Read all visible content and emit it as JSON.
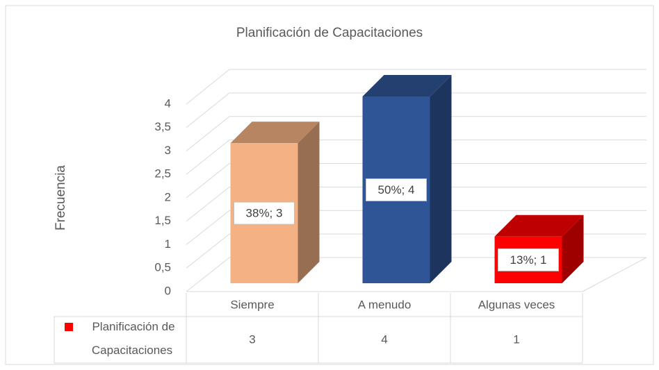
{
  "chart_data": {
    "type": "bar3d",
    "title": "Planificación de Capacitaciones",
    "y_label": "Frecuencia",
    "categories": [
      "Siempre",
      "A menudo",
      "Algunas veces"
    ],
    "series": [
      {
        "name": "Planificación de Capacitaciones",
        "color": "#ff0000",
        "colors": [
          "#f4b183",
          "#2f5597",
          "#ff0000"
        ],
        "values": [
          3,
          4,
          1
        ],
        "value_labels": [
          "38%; 3",
          "50%; 4",
          "13%; 1"
        ]
      }
    ],
    "ylim": [
      0,
      4
    ],
    "yticks": [
      0,
      {
        "value": 0.5,
        "label": "0,5"
      },
      1,
      {
        "value": 1.5,
        "label": "1,5"
      },
      2,
      {
        "value": 2.5,
        "label": "2,5"
      },
      3,
      {
        "value": 3.5,
        "label": "3,5"
      },
      4
    ],
    "grid": true,
    "data_table": true
  }
}
